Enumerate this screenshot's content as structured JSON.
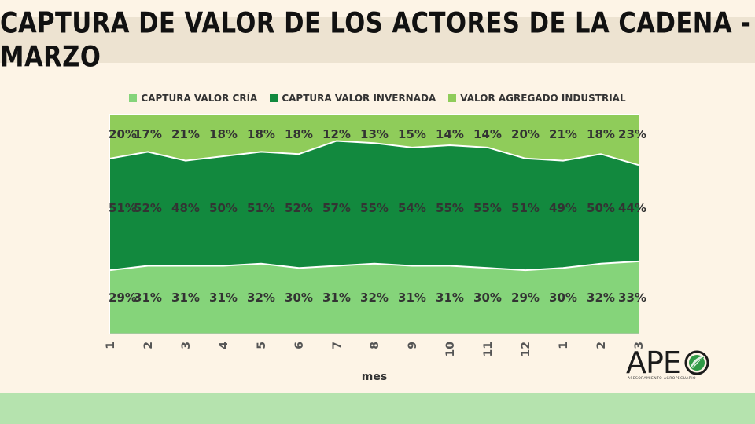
{
  "title": "CAPTURA DE VALOR DE LOS ACTORES DE LA CADENA -MARZO",
  "colors": {
    "cria": "#85d47a",
    "invernada": "#12893e",
    "industrial": "#8fcc5a",
    "background": "#fdf4e6",
    "title_band": "#ede3d1",
    "bottom_band": "#b5e3ae"
  },
  "logo": {
    "text": "APE",
    "subtitle": "ASESORAMIENTO AGROPECUARIO",
    "icon": "leaf-globe-icon"
  },
  "chart_data": {
    "type": "area",
    "stacked": true,
    "percent": true,
    "title": "",
    "xlabel": "mes",
    "ylabel": "",
    "ylim": [
      0,
      100
    ],
    "legend_position": "top",
    "categories": [
      "1",
      "2",
      "3",
      "4",
      "5",
      "6",
      "7",
      "8",
      "9",
      "10",
      "11",
      "12",
      "1",
      "2",
      "3"
    ],
    "series": [
      {
        "name": "CAPTURA VALOR CRÍA",
        "values": [
          29,
          31,
          31,
          31,
          32,
          30,
          31,
          32,
          31,
          31,
          30,
          29,
          30,
          32,
          33
        ]
      },
      {
        "name": "CAPTURA VALOR INVERNADA",
        "values": [
          51,
          52,
          48,
          50,
          51,
          52,
          57,
          55,
          54,
          55,
          55,
          51,
          49,
          50,
          44
        ]
      },
      {
        "name": "VALOR AGREGADO INDUSTRIAL",
        "values": [
          20,
          17,
          21,
          18,
          18,
          18,
          12,
          13,
          15,
          14,
          14,
          20,
          21,
          18,
          23
        ]
      }
    ]
  }
}
